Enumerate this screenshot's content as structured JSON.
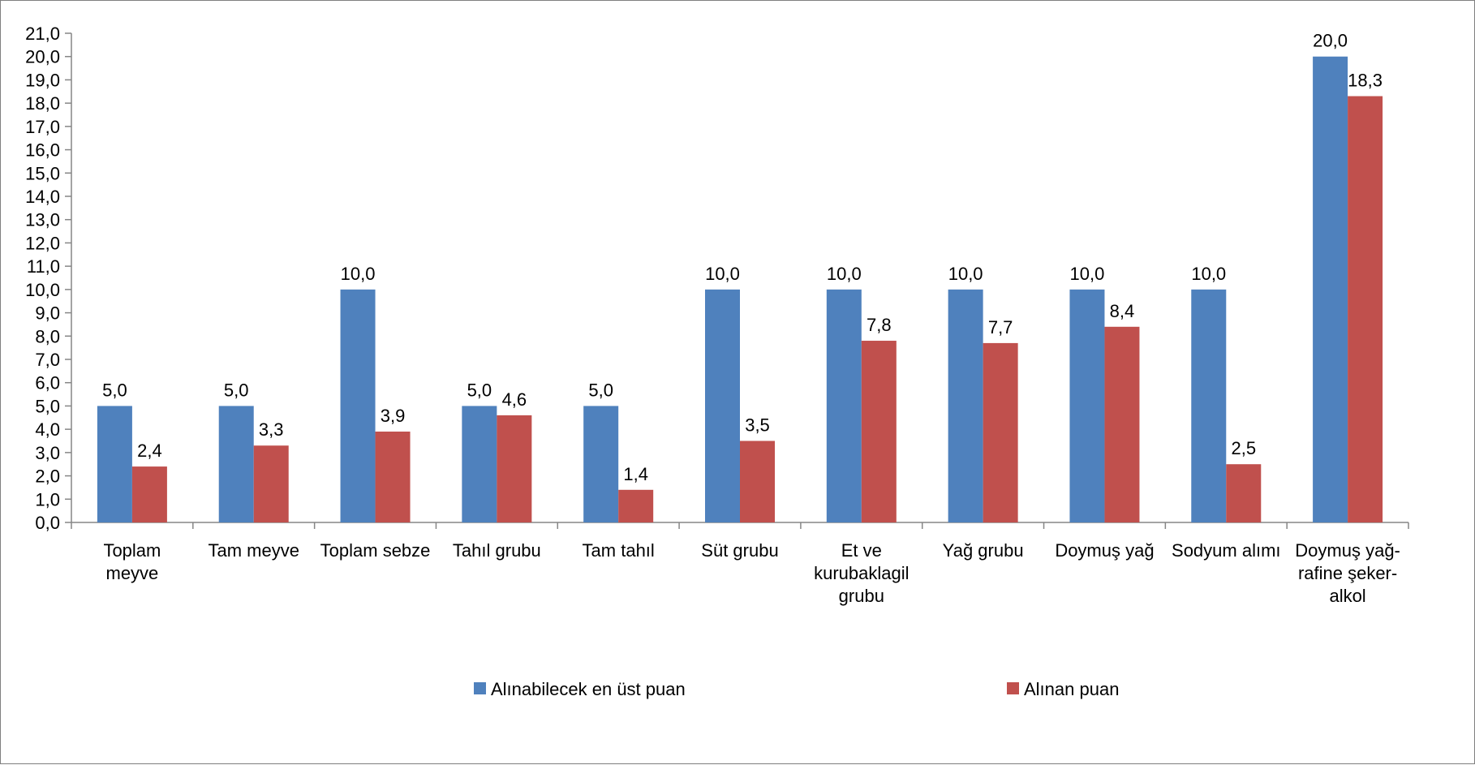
{
  "chart_data": {
    "type": "bar",
    "categories": [
      [
        "Toplam",
        "meyve"
      ],
      [
        "Tam meyve"
      ],
      [
        "Toplam sebze"
      ],
      [
        "Tahıl grubu"
      ],
      [
        "Tam tahıl"
      ],
      [
        "Süt grubu"
      ],
      [
        "Et ve",
        "kurubaklagil",
        "grubu"
      ],
      [
        "Yağ grubu"
      ],
      [
        "Doymuş yağ"
      ],
      [
        "Sodyum alımı"
      ],
      [
        "Doymuş yağ-",
        "rafine şeker-",
        "alkol"
      ]
    ],
    "series": [
      {
        "name": "Alınabilecek en üst puan",
        "color": "#4f81bd",
        "values": [
          5.0,
          5.0,
          10.0,
          5.0,
          5.0,
          10.0,
          10.0,
          10.0,
          10.0,
          10.0,
          20.0
        ],
        "labels": [
          "5,0",
          "5,0",
          "10,0",
          "5,0",
          "5,0",
          "10,0",
          "10,0",
          "10,0",
          "10,0",
          "10,0",
          "20,0"
        ]
      },
      {
        "name": "Alınan puan",
        "color": "#c0504d",
        "values": [
          2.4,
          3.3,
          3.9,
          4.6,
          1.4,
          3.5,
          7.8,
          7.7,
          8.4,
          2.5,
          18.3
        ],
        "labels": [
          "2,4",
          "3,3",
          "3,9",
          "4,6",
          "1,4",
          "3,5",
          "7,8",
          "7,7",
          "8,4",
          "2,5",
          "18,3"
        ]
      }
    ],
    "ylim": [
      0,
      21
    ],
    "yticks": [
      "0,0",
      "1,0",
      "2,0",
      "3,0",
      "4,0",
      "5,0",
      "6,0",
      "7,0",
      "8,0",
      "9,0",
      "10,0",
      "11,0",
      "12,0",
      "13,0",
      "14,0",
      "15,0",
      "16,0",
      "17,0",
      "18,0",
      "19,0",
      "20,0",
      "21,0"
    ],
    "grid": false,
    "legend": "bottom"
  }
}
